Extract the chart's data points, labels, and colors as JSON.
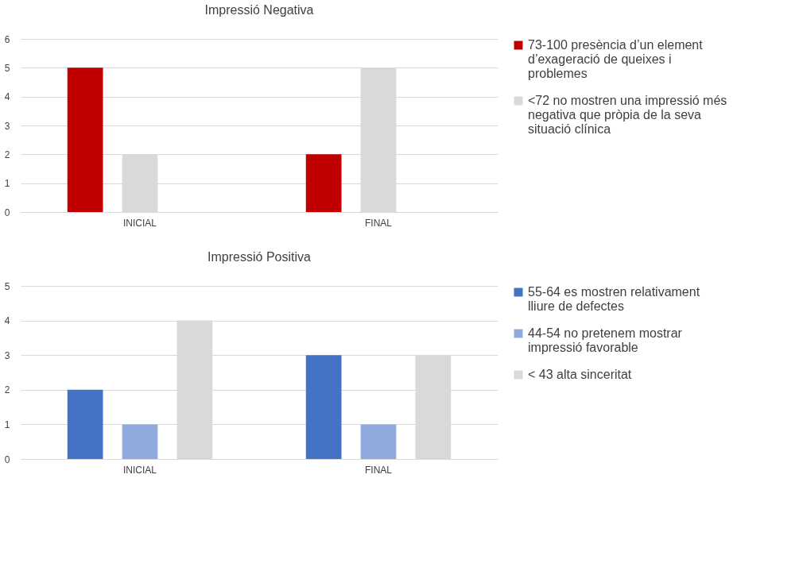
{
  "chart_data": [
    {
      "type": "bar",
      "title": "Impressió Negativa",
      "categories": [
        "INICIAL",
        "FINAL"
      ],
      "series": [
        {
          "name": "73-100 presència d’un element d’exageració  de queixes i problemes",
          "color": "#c00000",
          "values": [
            5,
            2
          ]
        },
        {
          "name": "<72 no mostren una impressió més negativa que pròpia de la seva situació clínica",
          "color": "#d9d9d9",
          "values": [
            2,
            5
          ]
        }
      ],
      "ylim": [
        0,
        6
      ],
      "yticks": [
        0,
        1,
        2,
        3,
        4,
        5,
        6
      ],
      "grid": "y",
      "legend": "right"
    },
    {
      "type": "bar",
      "title": "Impressió Positiva",
      "categories": [
        "INICIAL",
        "FINAL"
      ],
      "series": [
        {
          "name": "55-64 es mostren  relativament lliure de defectes",
          "color": "#4472c4",
          "values": [
            2,
            3
          ]
        },
        {
          "name": "44-54 no pretenem mostrar impressió favorable",
          "color": "#8faadc",
          "values": [
            1,
            1
          ]
        },
        {
          "name": "< 43 alta sinceritat",
          "color": "#d9d9d9",
          "values": [
            4,
            3
          ]
        }
      ],
      "ylim": [
        0,
        5
      ],
      "yticks": [
        0,
        1,
        2,
        3,
        4,
        5
      ],
      "grid": "y",
      "legend": "right"
    }
  ]
}
